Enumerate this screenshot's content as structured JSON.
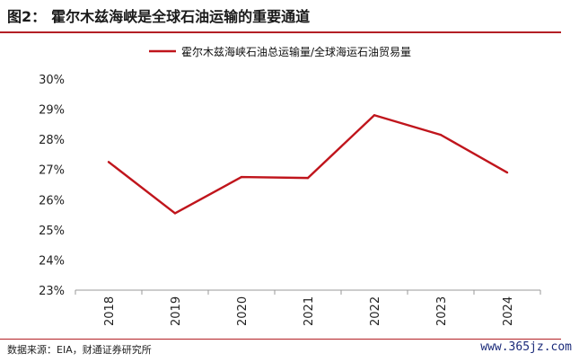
{
  "figure": {
    "number": "图2：",
    "title": "霍尔木兹海峡是全球石油运输的重要通道"
  },
  "footer": {
    "source": "数据来源：EIA，财通证券研究所",
    "watermark": "www.365jz.com"
  },
  "colors": {
    "accent": "#b32025",
    "series": "#c0151c",
    "axis": "#999999"
  },
  "chart_data": {
    "type": "line",
    "title": "",
    "xlabel": "",
    "ylabel": "",
    "legend_position": "top-center",
    "grid": false,
    "categories": [
      "2018",
      "2019",
      "2020",
      "2021",
      "2022",
      "2023",
      "2024"
    ],
    "ylim": [
      0.23,
      0.3
    ],
    "yticks": [
      0.23,
      0.24,
      0.25,
      0.26,
      0.27,
      0.28,
      0.29,
      0.3
    ],
    "ytick_labels": [
      "23%",
      "24%",
      "25%",
      "26%",
      "27%",
      "28%",
      "29%",
      "30%"
    ],
    "series": [
      {
        "name": "霍尔木兹海峡石油总运输量/全球海运石油贸易量",
        "values": [
          0.2725,
          0.2555,
          0.2675,
          0.2672,
          0.288,
          0.2815,
          0.269
        ]
      }
    ]
  }
}
